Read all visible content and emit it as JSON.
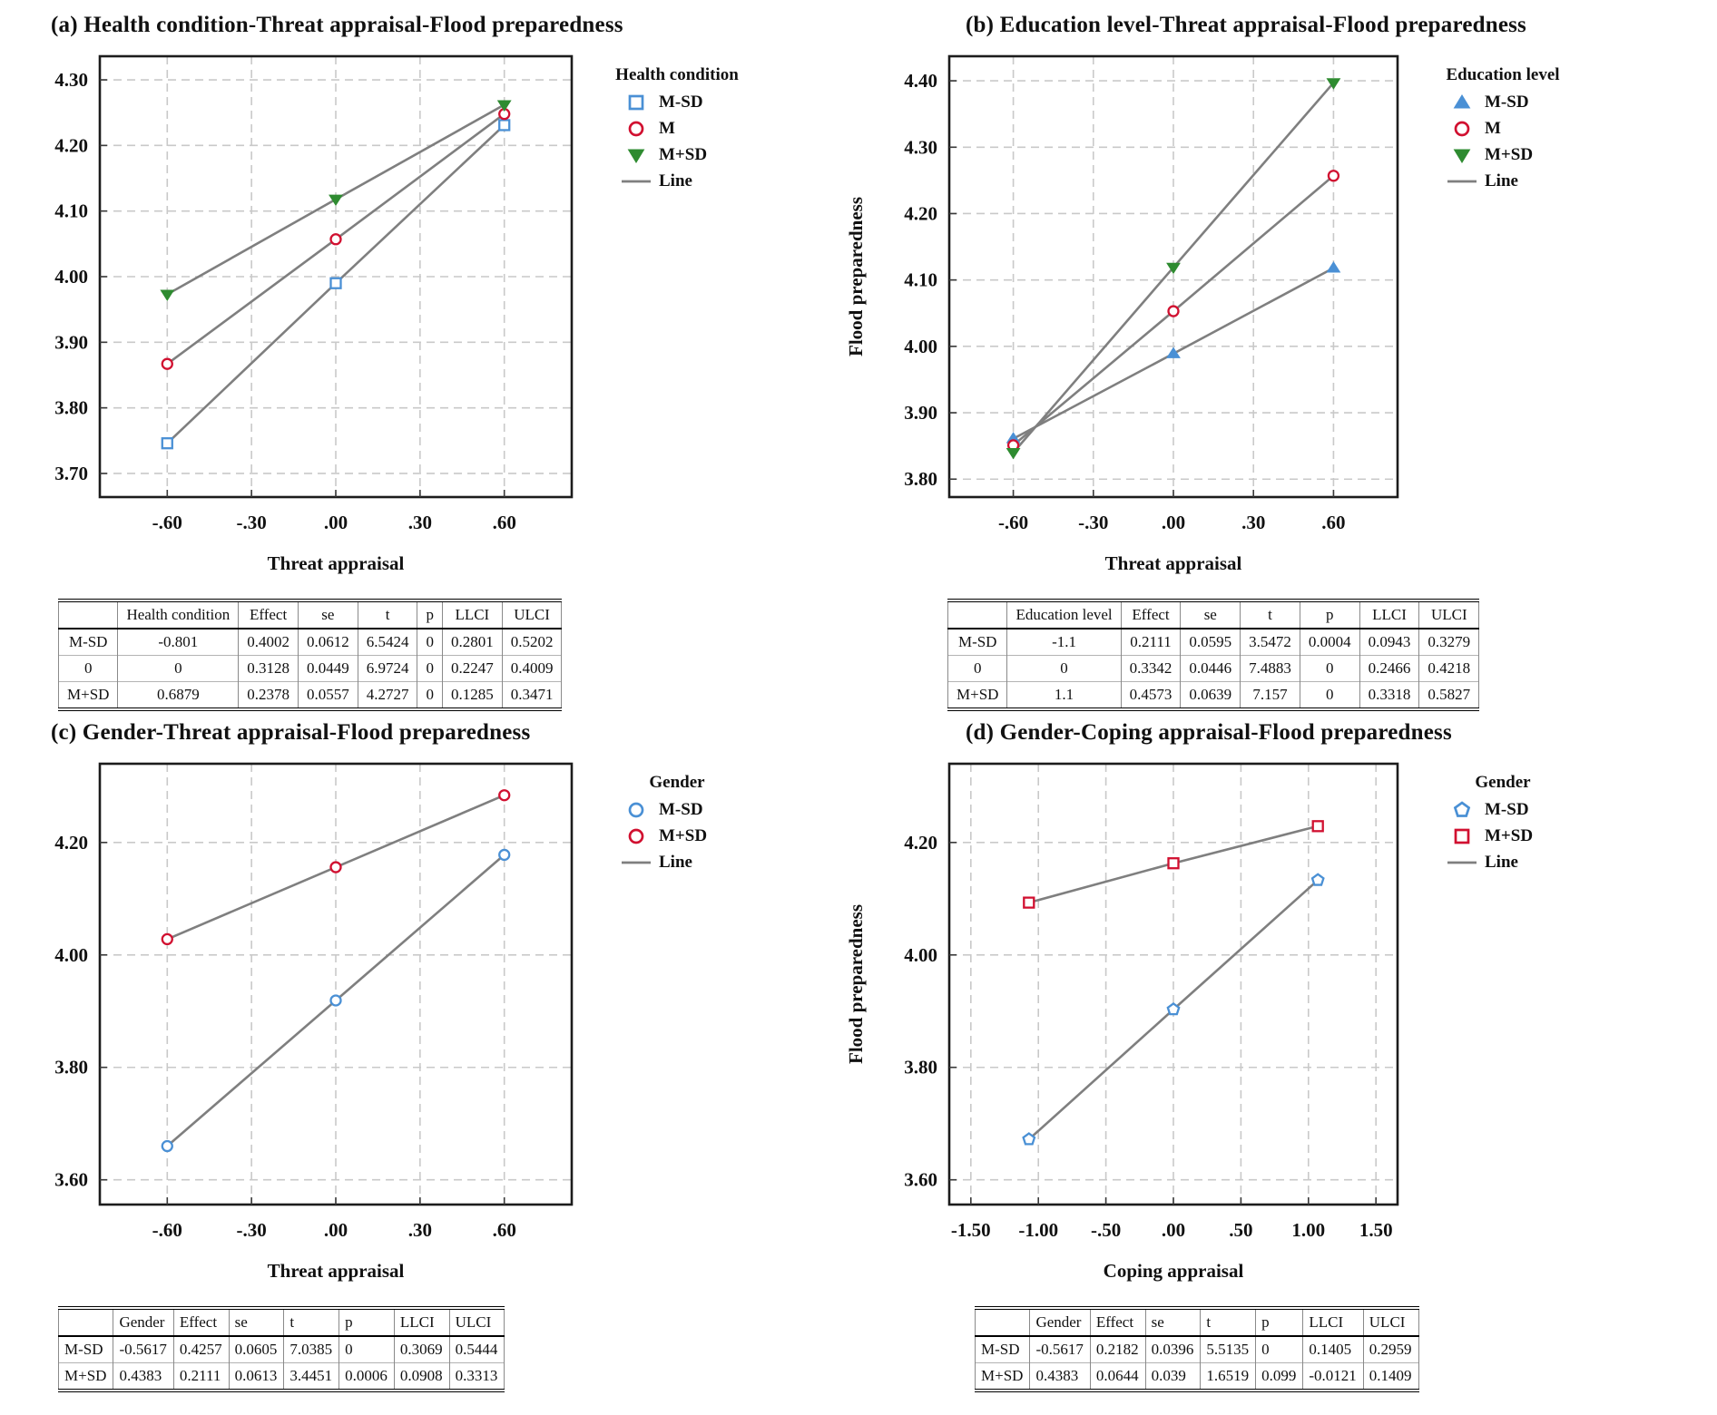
{
  "colors": {
    "blue": "#4a90d5",
    "red": "#d11030",
    "green": "#2e8b30",
    "line": "#7f7f7f",
    "grid": "#c9c9c9",
    "axis": "#1c1c1c"
  },
  "chart_data": [
    {
      "id": "a",
      "type": "line",
      "title": "(a) Health condition-Threat appraisal-Flood preparedness",
      "xlabel": "Threat appraisal",
      "ylabel": "",
      "legend_title": "Health condition",
      "legend_position": "right",
      "grid": true,
      "x": [
        -0.6,
        0,
        0.6
      ],
      "x_tick_values": [
        -0.6,
        -0.3,
        0,
        0.3,
        0.6
      ],
      "x_tick_labels": [
        "-.60",
        "-.30",
        ".00",
        ".30",
        ".60"
      ],
      "xlim": [
        -0.84,
        0.84
      ],
      "y_tick_values": [
        3.7,
        3.8,
        3.9,
        4.0,
        4.1,
        4.2,
        4.3
      ],
      "y_tick_labels": [
        "3.70",
        "3.80",
        "3.90",
        "4.00",
        "4.10",
        "4.20",
        "4.30"
      ],
      "ylim": [
        3.664,
        4.336
      ],
      "series": [
        {
          "name": "M-SD",
          "marker": "open-square",
          "color_key": "blue",
          "values": [
            3.746,
            3.99,
            4.231
          ]
        },
        {
          "name": "M",
          "marker": "open-circle",
          "color_key": "red",
          "values": [
            3.867,
            4.057,
            4.248
          ]
        },
        {
          "name": "M+SD",
          "marker": "tri-down",
          "color_key": "green",
          "values": [
            3.973,
            4.118,
            4.262
          ]
        }
      ],
      "line_legend_label": "Line",
      "table": {
        "align": "center",
        "headers": [
          "",
          "Health condition",
          "Effect",
          "se",
          "t",
          "p",
          "LLCI",
          "ULCI"
        ],
        "rows": [
          [
            "M-SD",
            "-0.801",
            "0.4002",
            "0.0612",
            "6.5424",
            "0",
            "0.2801",
            "0.5202"
          ],
          [
            "0",
            "0",
            "0.3128",
            "0.0449",
            "6.9724",
            "0",
            "0.2247",
            "0.4009"
          ],
          [
            "M+SD",
            "0.6879",
            "0.2378",
            "0.0557",
            "4.2727",
            "0",
            "0.1285",
            "0.3471"
          ]
        ]
      }
    },
    {
      "id": "b",
      "type": "line",
      "title": "(b) Education level-Threat appraisal-Flood preparedness",
      "xlabel": "Threat appraisal",
      "ylabel": "Flood preparedness",
      "legend_title": "Education level",
      "legend_position": "right",
      "grid": true,
      "x": [
        -0.6,
        0,
        0.6
      ],
      "x_tick_values": [
        -0.6,
        -0.3,
        0,
        0.3,
        0.6
      ],
      "x_tick_labels": [
        "-.60",
        "-.30",
        ".00",
        ".30",
        ".60"
      ],
      "xlim": [
        -0.84,
        0.84
      ],
      "y_tick_values": [
        3.8,
        3.9,
        4.0,
        4.1,
        4.2,
        4.3,
        4.4
      ],
      "y_tick_labels": [
        "3.80",
        "3.90",
        "4.00",
        "4.10",
        "4.20",
        "4.30",
        "4.40"
      ],
      "ylim": [
        3.773,
        4.437
      ],
      "series": [
        {
          "name": "M-SD",
          "marker": "tri-up",
          "color_key": "blue",
          "values": [
            3.861,
            3.989,
            4.118
          ]
        },
        {
          "name": "M",
          "marker": "open-circle",
          "color_key": "red",
          "values": [
            3.851,
            4.053,
            4.257
          ]
        },
        {
          "name": "M+SD",
          "marker": "tri-down",
          "color_key": "green",
          "values": [
            3.84,
            4.119,
            4.397
          ]
        }
      ],
      "line_legend_label": "Line",
      "table": {
        "align": "center",
        "headers": [
          "",
          "Education level",
          "Effect",
          "se",
          "t",
          "p",
          "LLCI",
          "ULCI"
        ],
        "rows": [
          [
            "M-SD",
            "-1.1",
            "0.2111",
            "0.0595",
            "3.5472",
            "0.0004",
            "0.0943",
            "0.3279"
          ],
          [
            "0",
            "0",
            "0.3342",
            "0.0446",
            "7.4883",
            "0",
            "0.2466",
            "0.4218"
          ],
          [
            "M+SD",
            "1.1",
            "0.4573",
            "0.0639",
            "7.157",
            "0",
            "0.3318",
            "0.5827"
          ]
        ]
      }
    },
    {
      "id": "c",
      "type": "line",
      "title": "(c) Gender-Threat appraisal-Flood preparedness",
      "xlabel": "Threat appraisal",
      "ylabel": "",
      "legend_title": "Gender",
      "legend_position": "right",
      "grid": true,
      "x": [
        -0.6,
        0,
        0.6
      ],
      "x_tick_values": [
        -0.6,
        -0.3,
        0,
        0.3,
        0.6
      ],
      "x_tick_labels": [
        "-.60",
        "-.30",
        ".00",
        ".30",
        ".60"
      ],
      "xlim": [
        -0.84,
        0.84
      ],
      "y_tick_values": [
        3.6,
        3.8,
        4.0,
        4.2
      ],
      "y_tick_labels": [
        "3.60",
        "3.80",
        "4.00",
        "4.20"
      ],
      "ylim": [
        3.556,
        4.34
      ],
      "series": [
        {
          "name": "M-SD",
          "marker": "open-circle",
          "color_key": "blue",
          "values": [
            3.66,
            3.919,
            4.178
          ]
        },
        {
          "name": "M+SD",
          "marker": "open-circle",
          "color_key": "red",
          "values": [
            4.028,
            4.156,
            4.284
          ]
        }
      ],
      "line_legend_label": "Line",
      "table": {
        "align": "left",
        "headers": [
          "",
          "Gender",
          "Effect",
          "se",
          "t",
          "p",
          "LLCI",
          "ULCI"
        ],
        "rows": [
          [
            "M-SD",
            "-0.5617",
            "0.4257",
            "0.0605",
            "7.0385",
            "0",
            "0.3069",
            "0.5444"
          ],
          [
            "M+SD",
            "0.4383",
            "0.2111",
            "0.0613",
            "3.4451",
            "0.0006",
            "0.0908",
            "0.3313"
          ]
        ]
      }
    },
    {
      "id": "d",
      "type": "line",
      "title": "(d) Gender-Coping appraisal-Flood preparedness",
      "xlabel": "Coping appraisal",
      "ylabel": "Flood preparedness",
      "legend_title": "Gender",
      "legend_position": "right",
      "grid": true,
      "x": [
        -1.07,
        0,
        1.07
      ],
      "x_tick_values": [
        -1.5,
        -1.0,
        -0.5,
        0,
        0.5,
        1.0,
        1.5
      ],
      "x_tick_labels": [
        "-1.50",
        "-1.00",
        "-.50",
        ".00",
        ".50",
        "1.00",
        "1.50"
      ],
      "xlim": [
        -1.66,
        1.66
      ],
      "y_tick_values": [
        3.6,
        3.8,
        4.0,
        4.2
      ],
      "y_tick_labels": [
        "3.60",
        "3.80",
        "4.00",
        "4.20"
      ],
      "ylim": [
        3.556,
        4.34
      ],
      "series": [
        {
          "name": "M-SD",
          "marker": "open-pentagon",
          "color_key": "blue",
          "values": [
            3.672,
            3.903,
            4.133
          ]
        },
        {
          "name": "M+SD",
          "marker": "open-square",
          "color_key": "red",
          "values": [
            4.093,
            4.163,
            4.229
          ]
        }
      ],
      "line_legend_label": "Line",
      "table": {
        "align": "left",
        "headers": [
          "",
          "Gender",
          "Effect",
          "se",
          "t",
          "p",
          "LLCI",
          "ULCI"
        ],
        "rows": [
          [
            "M-SD",
            "-0.5617",
            "0.2182",
            "0.0396",
            "5.5135",
            "0",
            "0.1405",
            "0.2959"
          ],
          [
            "M+SD",
            "0.4383",
            "0.0644",
            "0.039",
            "1.6519",
            "0.099",
            "-0.0121",
            "0.1409"
          ]
        ]
      }
    }
  ]
}
